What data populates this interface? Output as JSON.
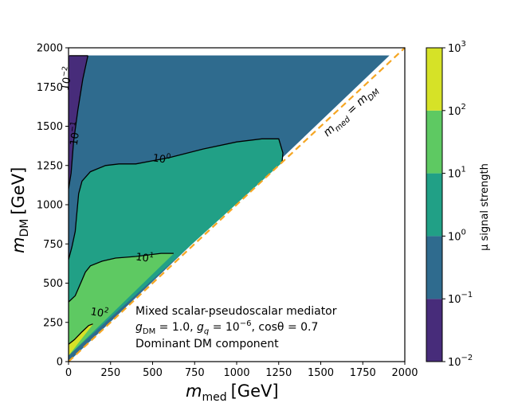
{
  "chart_data": {
    "type": "contour",
    "xlabel": {
      "main": "m",
      "sub": "med",
      "unit": "[GeV]"
    },
    "ylabel": {
      "main": "m",
      "sub": "DM",
      "unit": "[GeV]"
    },
    "xlim": [
      0,
      2000
    ],
    "ylim": [
      0,
      2000
    ],
    "xticks": [
      0,
      250,
      500,
      750,
      1000,
      1250,
      1500,
      1750,
      2000
    ],
    "yticks": [
      0,
      250,
      500,
      750,
      1000,
      1250,
      1500,
      1750,
      2000
    ],
    "colorbar": {
      "label": "μ signal strength",
      "levels_exp": [
        -2,
        -1,
        0,
        1,
        2,
        3
      ],
      "tick_labels": [
        {
          "base": "10",
          "exp": "−2"
        },
        {
          "base": "10",
          "exp": "−1"
        },
        {
          "base": "10",
          "exp": "0"
        },
        {
          "base": "10",
          "exp": "1"
        },
        {
          "base": "10",
          "exp": "2"
        },
        {
          "base": "10",
          "exp": "3"
        }
      ],
      "colors": [
        "#472c7a",
        "#2f6b8e",
        "#21a086",
        "#5ec962",
        "#d6e227"
      ]
    },
    "diagonal_label": {
      "lhs": "m",
      "lhs_sub": "med",
      "eq": " = ",
      "rhs": "m",
      "rhs_sub": "DM"
    },
    "diagonal_color": "#f5a623",
    "contour_labels": [
      {
        "base": "10",
        "exp": "−2",
        "x": 10,
        "y": 1800
      },
      {
        "base": "10",
        "exp": "−1",
        "x": 60,
        "y": 1450
      },
      {
        "base": "10",
        "exp": "0",
        "x": 550,
        "y": 1270
      },
      {
        "base": "10",
        "exp": "1",
        "x": 450,
        "y": 640
      },
      {
        "base": "10",
        "exp": "2",
        "x": 180,
        "y": 290
      }
    ],
    "regions": [
      {
        "level": "1e-2 to 1e-1",
        "color_index": 0,
        "polygon": [
          [
            5,
            1950
          ],
          [
            115,
            1950
          ],
          [
            85,
            1800
          ],
          [
            55,
            1600
          ],
          [
            30,
            1400
          ],
          [
            15,
            1200
          ],
          [
            0,
            1100
          ],
          [
            0,
            1950
          ]
        ]
      },
      {
        "level": "1e-1 to 1e0",
        "color_index": 1,
        "polygon": [
          [
            0,
            0
          ],
          [
            0,
            1100
          ],
          [
            15,
            1200
          ],
          [
            30,
            1400
          ],
          [
            55,
            1600
          ],
          [
            85,
            1800
          ],
          [
            115,
            1950
          ],
          [
            1905,
            1950
          ],
          [
            0,
            0
          ]
        ]
      },
      {
        "level": "1e0 to 1e1",
        "color_index": 2,
        "polygon": [
          [
            0,
            40
          ],
          [
            0,
            650
          ],
          [
            20,
            730
          ],
          [
            40,
            830
          ],
          [
            50,
            950
          ],
          [
            60,
            1070
          ],
          [
            80,
            1150
          ],
          [
            130,
            1210
          ],
          [
            220,
            1250
          ],
          [
            300,
            1260
          ],
          [
            400,
            1260
          ],
          [
            600,
            1300
          ],
          [
            800,
            1355
          ],
          [
            1000,
            1400
          ],
          [
            1150,
            1420
          ],
          [
            1250,
            1420
          ],
          [
            1275,
            1330
          ],
          [
            1270,
            1270
          ],
          [
            0,
            40
          ]
        ]
      },
      {
        "level": "1e1 to 1e2",
        "color_index": 3,
        "polygon": [
          [
            0,
            40
          ],
          [
            0,
            380
          ],
          [
            40,
            420
          ],
          [
            80,
            520
          ],
          [
            100,
            570
          ],
          [
            130,
            610
          ],
          [
            200,
            640
          ],
          [
            280,
            660
          ],
          [
            400,
            670
          ],
          [
            550,
            690
          ],
          [
            625,
            690
          ],
          [
            0,
            40
          ]
        ]
      },
      {
        "level": "1e2 to 1e3",
        "color_index": 4,
        "polygon": [
          [
            0,
            40
          ],
          [
            0,
            110
          ],
          [
            35,
            140
          ],
          [
            80,
            190
          ],
          [
            120,
            230
          ],
          [
            145,
            240
          ],
          [
            0,
            40
          ]
        ]
      }
    ],
    "contour_lines": [
      [
        [
          5,
          1950
        ],
        [
          115,
          1950
        ]
      ],
      [
        [
          0,
          1100
        ],
        [
          15,
          1200
        ],
        [
          30,
          1400
        ],
        [
          55,
          1600
        ],
        [
          85,
          1800
        ],
        [
          115,
          1950
        ]
      ],
      [
        [
          0,
          650
        ],
        [
          20,
          730
        ],
        [
          40,
          830
        ],
        [
          50,
          950
        ],
        [
          60,
          1070
        ],
        [
          80,
          1150
        ],
        [
          130,
          1210
        ],
        [
          220,
          1250
        ],
        [
          300,
          1260
        ],
        [
          400,
          1260
        ],
        [
          600,
          1300
        ],
        [
          800,
          1355
        ],
        [
          1000,
          1400
        ],
        [
          1150,
          1420
        ],
        [
          1250,
          1420
        ],
        [
          1275,
          1330
        ],
        [
          1270,
          1270
        ]
      ],
      [
        [
          0,
          380
        ],
        [
          40,
          420
        ],
        [
          80,
          520
        ],
        [
          100,
          570
        ],
        [
          130,
          610
        ],
        [
          200,
          640
        ],
        [
          280,
          660
        ],
        [
          400,
          670
        ],
        [
          550,
          690
        ],
        [
          625,
          690
        ]
      ],
      [
        [
          0,
          110
        ],
        [
          35,
          140
        ],
        [
          80,
          190
        ],
        [
          120,
          230
        ],
        [
          145,
          240
        ]
      ]
    ],
    "annotation": {
      "line1": "Mixed scalar-pseudoscalar mediator",
      "line2": {
        "g": "g",
        "dm": "DM",
        "dmval": " = 1.0, ",
        "q": "q",
        "qval": " = 10",
        "qexp": "−6",
        "cos": ", cosθ = 0.7"
      },
      "line3": "Dominant DM component"
    }
  }
}
